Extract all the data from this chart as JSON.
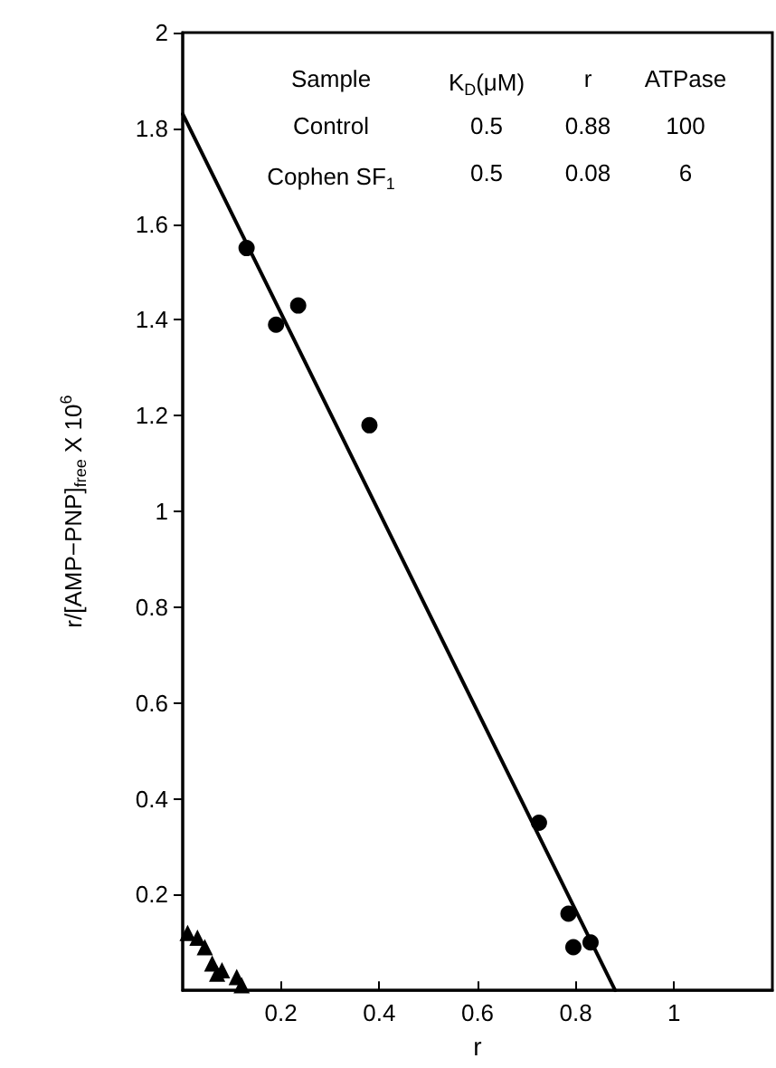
{
  "chart_data": {
    "type": "scatter",
    "xlabel": "r",
    "ylabel": "r/[AMP−PNP]$_{free}$ X 10$^{6}$",
    "xlim": [
      0,
      1.2
    ],
    "xticks": [
      0.2,
      0.4,
      0.6,
      0.8,
      1.0
    ],
    "ylim": [
      0,
      2.0
    ],
    "yticks": [
      0.2,
      0.4,
      0.6,
      0.8,
      1.0,
      1.2,
      1.4,
      1.6,
      1.8,
      2.0
    ],
    "grid": false,
    "series": [
      {
        "marker": "circle",
        "color": "#000000",
        "x": [
          0.13,
          0.19,
          0.235,
          0.38,
          0.725,
          0.785,
          0.795,
          0.83
        ],
        "values": [
          1.55,
          1.39,
          1.43,
          1.18,
          0.35,
          0.16,
          0.09,
          0.1
        ]
      },
      {
        "marker": "triangle",
        "color": "#000000",
        "x": [
          0.01,
          0.03,
          0.045,
          0.06,
          0.07,
          0.08,
          0.11,
          0.12
        ],
        "values": [
          0.12,
          0.11,
          0.09,
          0.056,
          0.035,
          0.042,
          0.028,
          0.011
        ]
      },
      {
        "type": "line",
        "marker": "none",
        "line_style": "solid",
        "color": "#000000",
        "x": [
          0,
          0.88
        ],
        "values": [
          1.83,
          0
        ]
      }
    ],
    "annotations": [
      "Sample",
      "K$_{D}$(μM)",
      "r",
      "ATPase",
      "Control",
      "0.5",
      "0.88",
      "100",
      "Cophen SF$_{1}$",
      "0.5",
      "0.08",
      "6"
    ]
  }
}
